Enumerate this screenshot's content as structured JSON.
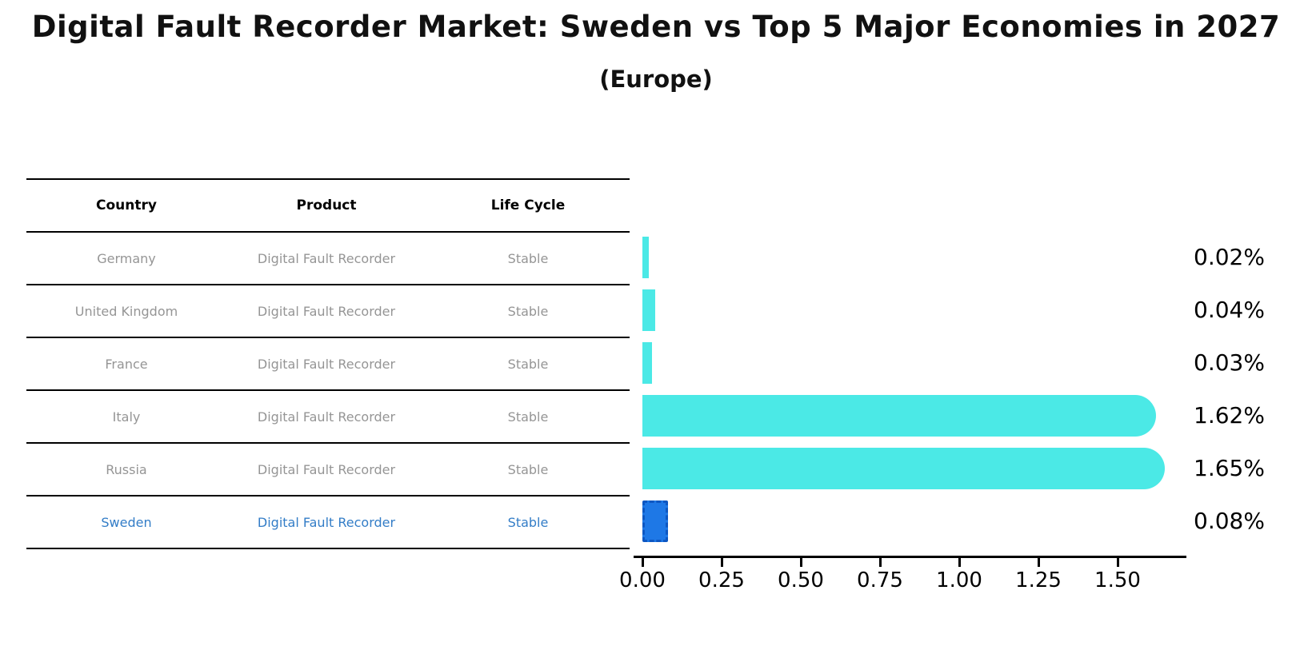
{
  "header": {
    "title": "Digital Fault Recorder Market: Sweden vs Top 5 Major Economies in 2027",
    "subtitle": "(Europe)"
  },
  "table": {
    "columns": [
      "Country",
      "Product",
      "Life Cycle"
    ],
    "rows": [
      {
        "country": "Germany",
        "product": "Digital Fault Recorder",
        "life_cycle": "Stable",
        "highlight": false
      },
      {
        "country": "United Kingdom",
        "product": "Digital Fault Recorder",
        "life_cycle": "Stable",
        "highlight": false
      },
      {
        "country": "France",
        "product": "Digital Fault Recorder",
        "life_cycle": "Stable",
        "highlight": false
      },
      {
        "country": "Italy",
        "product": "Digital Fault Recorder",
        "life_cycle": "Stable",
        "highlight": false
      },
      {
        "country": "Russia",
        "product": "Digital Fault Recorder",
        "life_cycle": "Stable",
        "highlight": false
      },
      {
        "country": "Sweden",
        "product": "Digital Fault Recorder",
        "life_cycle": "Stable",
        "highlight": true
      }
    ]
  },
  "chart_data": {
    "type": "bar",
    "orientation": "horizontal",
    "title": "Digital Fault Recorder Market: Sweden vs Top 5 Major Economies in 2027",
    "subtitle": "(Europe)",
    "categories": [
      "Germany",
      "United Kingdom",
      "France",
      "Italy",
      "Russia",
      "Sweden"
    ],
    "values": [
      0.02,
      0.04,
      0.03,
      1.62,
      1.65,
      0.08
    ],
    "value_labels": [
      "0.02%",
      "0.04%",
      "0.03%",
      "1.62%",
      "1.65%",
      "0.08%"
    ],
    "unit": "%",
    "x_ticks": [
      0,
      0.25,
      0.5,
      0.75,
      1.0,
      1.25,
      1.5
    ],
    "x_tick_labels": [
      "0.00",
      "0.25",
      "0.50",
      "0.75",
      "1.00",
      "1.25",
      "1.50"
    ],
    "xlim": [
      0,
      1.74
    ],
    "grid": false,
    "legend": false,
    "bar_color": "#4be9e6",
    "highlight_bar_color": "#1e78e6",
    "highlight_index": 5,
    "highlight_text_color": "#337dc7"
  }
}
